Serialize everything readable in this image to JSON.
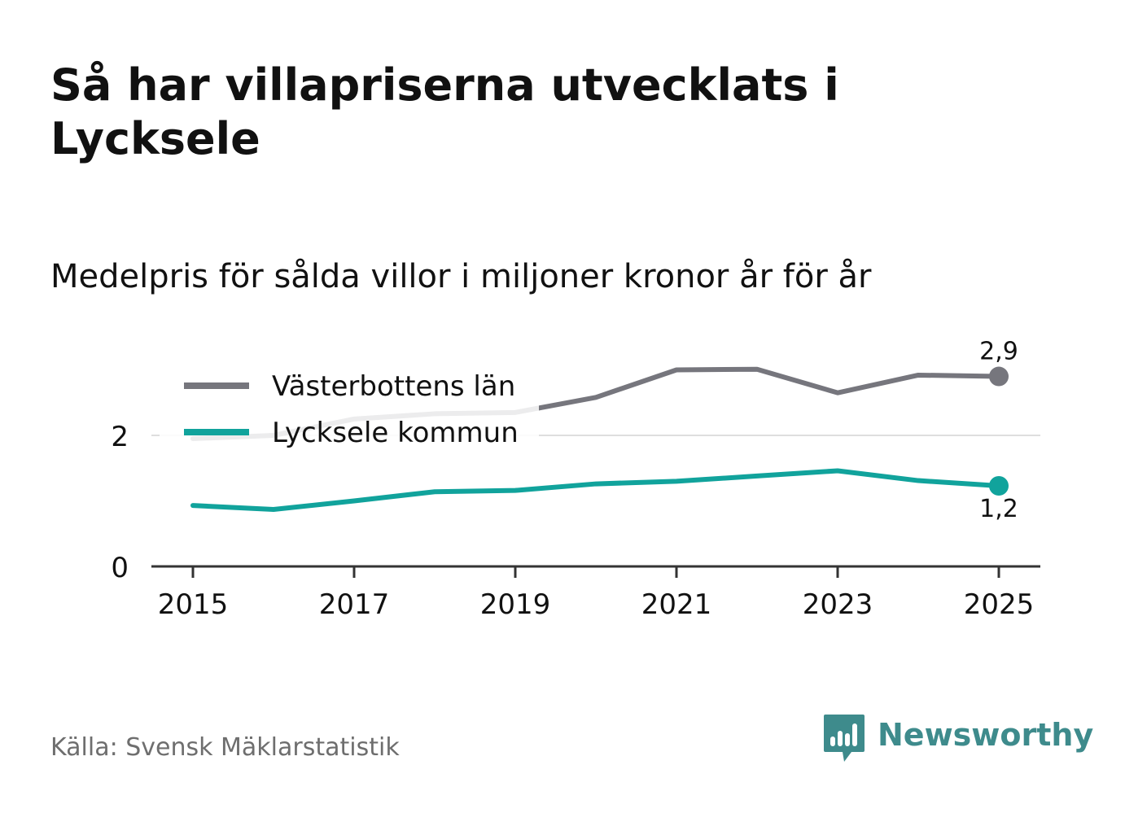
{
  "title": "Så har villapriserna utvecklats i Lycksele",
  "subtitle": "Medelpris för sålda villor i miljoner kronor år för år",
  "source": "Källa: Svensk Mäklarstatistik",
  "brand": {
    "name": "Newsworthy",
    "icon": "newsworthy-bar-chart-icon",
    "color": "#3e8b8c"
  },
  "chart_data": {
    "type": "line",
    "title": "Så har villapriserna utvecklats i Lycksele",
    "subtitle": "Medelpris för sålda villor i miljoner kronor år för år",
    "xlabel": "",
    "ylabel": "",
    "x": [
      2015,
      2016,
      2017,
      2018,
      2019,
      2020,
      2021,
      2022,
      2023,
      2024,
      2025
    ],
    "xticks": [
      "2015",
      "2017",
      "2019",
      "2021",
      "2023",
      "2025"
    ],
    "xlim": [
      2014.5,
      2025.5
    ],
    "ylim": [
      0,
      3.1
    ],
    "yticks": [
      0,
      2
    ],
    "ytick_labels": [
      "0",
      "2"
    ],
    "grid": true,
    "legend_position": "top-left",
    "series": [
      {
        "name": "Västerbottens län",
        "color": "#76767d",
        "values": [
          1.95,
          2.0,
          2.25,
          2.33,
          2.35,
          2.58,
          3.0,
          3.01,
          2.65,
          2.92,
          2.9
        ],
        "end_label": "2,9",
        "end_label_position": "above"
      },
      {
        "name": "Lycksele kommun",
        "color": "#11a39c",
        "values": [
          0.93,
          0.87,
          1.0,
          1.14,
          1.16,
          1.26,
          1.3,
          1.38,
          1.46,
          1.31,
          1.23
        ],
        "end_label": "1,2",
        "end_label_position": "below"
      }
    ]
  }
}
